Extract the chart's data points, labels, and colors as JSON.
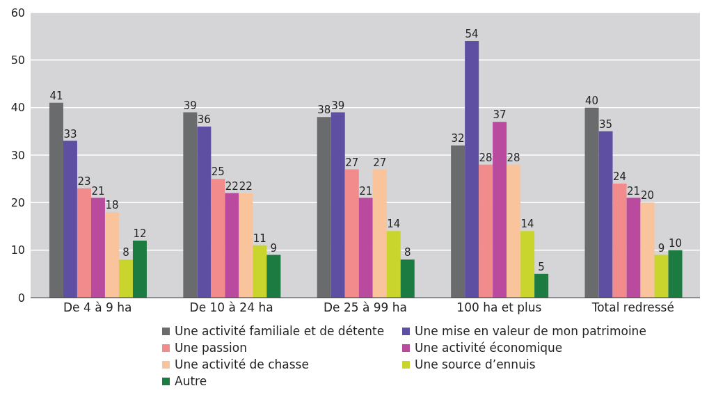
{
  "chart_data": {
    "type": "bar",
    "categories": [
      "De 4 à 9 ha",
      "De 10 à 24 ha",
      "De 25 à 99 ha",
      "100 ha et plus",
      "Total redressé"
    ],
    "series": [
      {
        "name": "Une activité familiale et de détente",
        "color": "#6a6b6d",
        "values": [
          41,
          39,
          38,
          32,
          40
        ]
      },
      {
        "name": "Une mise en valeur de mon patrimoine",
        "color": "#5f4fa3",
        "values": [
          33,
          36,
          39,
          54,
          35
        ]
      },
      {
        "name": "Une passion",
        "color": "#f28b8b",
        "values": [
          23,
          25,
          27,
          28,
          24
        ]
      },
      {
        "name": "Une activité économique",
        "color": "#b94a9d",
        "values": [
          21,
          22,
          21,
          37,
          21
        ]
      },
      {
        "name": "Une activité de chasse",
        "color": "#f9c49b",
        "values": [
          18,
          22,
          27,
          28,
          20
        ]
      },
      {
        "name": "Une source d’ennuis",
        "color": "#c9d52c",
        "values": [
          8,
          11,
          14,
          14,
          9
        ]
      },
      {
        "name": "Autre",
        "color": "#1c7b40",
        "values": [
          12,
          9,
          8,
          5,
          10
        ]
      }
    ],
    "ylim": [
      0,
      60
    ],
    "yticks": [
      0,
      10,
      20,
      30,
      40,
      50,
      60
    ],
    "grid": "y",
    "legend": "bottom",
    "data_labels": true
  }
}
